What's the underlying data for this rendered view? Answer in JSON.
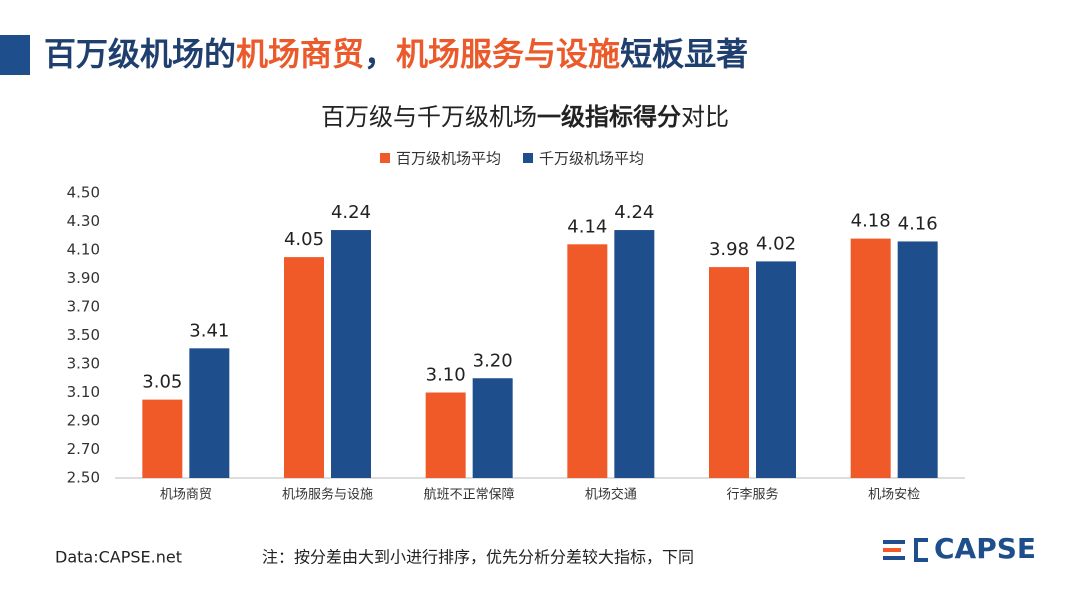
{
  "header": {
    "title_parts": [
      {
        "text": "百万级机场的",
        "color": "#1f3f6e"
      },
      {
        "text": "机场商贸",
        "color": "#ea5a2a"
      },
      {
        "text": "，",
        "color": "#1f3f6e"
      },
      {
        "text": "机场服务与设施",
        "color": "#ea5a2a"
      },
      {
        "text": "短板显著",
        "color": "#1f3f6e"
      }
    ]
  },
  "chart_data": {
    "type": "bar",
    "title_parts": [
      {
        "text": "百万级与千万级机场",
        "bold": false
      },
      {
        "text": "一级指标得分",
        "bold": true
      },
      {
        "text": "对比",
        "bold": false
      }
    ],
    "categories": [
      "机场商贸",
      "机场服务与设施",
      "航班不正常保障",
      "机场交通",
      "行李服务",
      "机场安检"
    ],
    "series": [
      {
        "name": "百万级机场平均",
        "color": "#f05a28",
        "values": [
          3.05,
          4.05,
          3.1,
          4.14,
          3.98,
          4.18
        ],
        "value_labels": [
          "3.05",
          "4.05",
          "3.10",
          "4.14",
          "3.98",
          "4.18"
        ]
      },
      {
        "name": "千万级机场平均",
        "color": "#1f4e8c",
        "values": [
          3.41,
          4.24,
          3.2,
          4.24,
          4.02,
          4.16
        ],
        "value_labels": [
          "3.41",
          "4.24",
          "3.20",
          "4.24",
          "4.02",
          "4.16"
        ]
      }
    ],
    "ylim": [
      2.5,
      4.5
    ],
    "yticks": [
      {
        "value": 2.5,
        "label": "2.50"
      },
      {
        "value": 2.7,
        "label": "2.70"
      },
      {
        "value": 2.9,
        "label": "2.90"
      },
      {
        "value": 3.1,
        "label": "3.10"
      },
      {
        "value": 3.3,
        "label": "3.30"
      },
      {
        "value": 3.5,
        "label": "3.50"
      },
      {
        "value": 3.7,
        "label": "3.70"
      },
      {
        "value": 3.9,
        "label": "3.90"
      },
      {
        "value": 4.1,
        "label": "4.10"
      },
      {
        "value": 4.3,
        "label": "4.30"
      },
      {
        "value": 4.5,
        "label": "4.50"
      }
    ],
    "grid": false,
    "legend": "top"
  },
  "footer": {
    "source": "Data:CAPSE.net",
    "note": "注：按分差由大到小进行排序，优先分析分差较大指标，下同",
    "logo": "CAPSE"
  }
}
